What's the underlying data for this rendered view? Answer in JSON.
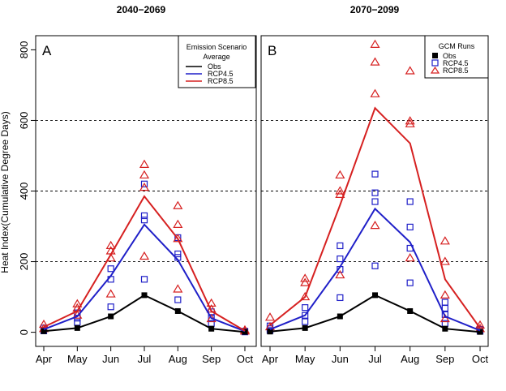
{
  "figure": {
    "ylabel": "Heat Index(Cumulative Degree Days)"
  },
  "colors": {
    "obs": "#000000",
    "rcp45": "#1f1fc8",
    "rcp85": "#d62020"
  },
  "chart_data": [
    {
      "type": "line",
      "panel_label": "A",
      "title": "2040−2069",
      "xlabel": "",
      "ylabel": "Heat Index(Cumulative Degree Days)",
      "categories": [
        "Apr",
        "May",
        "Jun",
        "Jul",
        "Aug",
        "Sep",
        "Oct"
      ],
      "y_ticks": [
        "0",
        "200",
        "400",
        "600",
        "800"
      ],
      "ylim": [
        -40,
        840
      ],
      "grid": "dashed horizontal lines at 200, 400, 600",
      "legend": {
        "position": "top-right",
        "title_lines": [
          "Emission Scenario",
          "Average"
        ],
        "entries": [
          {
            "name": "Obs",
            "style": "line",
            "color": "#000000"
          },
          {
            "name": "RCP4.5",
            "style": "line",
            "color": "#1f1fc8"
          },
          {
            "name": "RCP8.5",
            "style": "line",
            "color": "#d62020"
          }
        ]
      },
      "series": [
        {
          "name": "Obs",
          "kind": "line-square",
          "color": "#000000",
          "values": [
            3,
            12,
            45,
            105,
            60,
            10,
            1
          ]
        },
        {
          "name": "RCP4.5",
          "kind": "line",
          "color": "#1f1fc8",
          "values": [
            8,
            45,
            160,
            305,
            205,
            40,
            3
          ]
        },
        {
          "name": "RCP8.5",
          "kind": "line",
          "color": "#d62020",
          "values": [
            15,
            60,
            220,
            385,
            265,
            60,
            4
          ]
        }
      ],
      "runs": [
        {
          "name": "RCP4.5",
          "marker": "open-square",
          "color": "#1f1fc8",
          "points": [
            [
              0,
              4
            ],
            [
              0,
              12
            ],
            [
              1,
              28
            ],
            [
              1,
              40
            ],
            [
              1,
              55
            ],
            [
              2,
              72
            ],
            [
              2,
              150
            ],
            [
              2,
              180
            ],
            [
              3,
              150
            ],
            [
              3,
              318
            ],
            [
              3,
              330
            ],
            [
              3,
              420
            ],
            [
              4,
              92
            ],
            [
              4,
              212
            ],
            [
              4,
              222
            ],
            [
              4,
              268
            ],
            [
              5,
              25
            ],
            [
              5,
              40
            ],
            [
              5,
              58
            ],
            [
              6,
              1
            ],
            [
              6,
              3
            ]
          ]
        },
        {
          "name": "RCP8.5",
          "marker": "open-triangle",
          "color": "#d62020",
          "points": [
            [
              0,
              10
            ],
            [
              0,
              22
            ],
            [
              1,
              48
            ],
            [
              1,
              68
            ],
            [
              1,
              80
            ],
            [
              2,
              108
            ],
            [
              2,
              210
            ],
            [
              2,
              230
            ],
            [
              2,
              245
            ],
            [
              3,
              215
            ],
            [
              3,
              410
            ],
            [
              3,
              445
            ],
            [
              3,
              475
            ],
            [
              4,
              122
            ],
            [
              4,
              265
            ],
            [
              4,
              305
            ],
            [
              4,
              358
            ],
            [
              5,
              38
            ],
            [
              5,
              65
            ],
            [
              5,
              82
            ],
            [
              6,
              3
            ],
            [
              6,
              6
            ]
          ]
        }
      ]
    },
    {
      "type": "line",
      "panel_label": "B",
      "title": "2070−2099",
      "xlabel": "",
      "ylabel": "",
      "categories": [
        "Apr",
        "May",
        "Jun",
        "Jul",
        "Aug",
        "Sep",
        "Oct"
      ],
      "y_ticks": [],
      "ylim": [
        -40,
        840
      ],
      "grid": "dashed horizontal lines at 200, 400, 600",
      "legend": {
        "position": "top-right",
        "title_lines": [
          "GCM Runs"
        ],
        "entries": [
          {
            "name": "Obs",
            "style": "filled-square",
            "color": "#000000"
          },
          {
            "name": "RCP4.5",
            "style": "open-square",
            "color": "#1f1fc8"
          },
          {
            "name": "RCP8.5",
            "style": "open-triangle",
            "color": "#d62020"
          }
        ]
      },
      "series": [
        {
          "name": "Obs",
          "kind": "line-square",
          "color": "#000000",
          "values": [
            2,
            12,
            45,
            105,
            60,
            10,
            1
          ]
        },
        {
          "name": "RCP4.5",
          "kind": "line",
          "color": "#1f1fc8",
          "values": [
            8,
            48,
            185,
            350,
            255,
            45,
            5
          ]
        },
        {
          "name": "RCP8.5",
          "kind": "line",
          "color": "#d62020",
          "values": [
            20,
            100,
            360,
            635,
            535,
            150,
            12
          ]
        }
      ],
      "runs": [
        {
          "name": "RCP4.5",
          "marker": "open-square",
          "color": "#1f1fc8",
          "points": [
            [
              0,
              5
            ],
            [
              0,
              10
            ],
            [
              0,
              18
            ],
            [
              1,
              30
            ],
            [
              1,
              48
            ],
            [
              1,
              70
            ],
            [
              2,
              98
            ],
            [
              2,
              178
            ],
            [
              2,
              208
            ],
            [
              2,
              245
            ],
            [
              3,
              188
            ],
            [
              3,
              370
            ],
            [
              3,
              395
            ],
            [
              3,
              448
            ],
            [
              4,
              140
            ],
            [
              4,
              238
            ],
            [
              4,
              298
            ],
            [
              4,
              370
            ],
            [
              5,
              25
            ],
            [
              5,
              50
            ],
            [
              5,
              68
            ],
            [
              5,
              85
            ],
            [
              6,
              3
            ],
            [
              6,
              8
            ]
          ]
        },
        {
          "name": "RCP8.5",
          "marker": "open-triangle",
          "color": "#d62020",
          "points": [
            [
              0,
              15
            ],
            [
              0,
              42
            ],
            [
              1,
              100
            ],
            [
              1,
              140
            ],
            [
              1,
              152
            ],
            [
              2,
              162
            ],
            [
              2,
              390
            ],
            [
              2,
              400
            ],
            [
              2,
              445
            ],
            [
              3,
              302
            ],
            [
              3,
              675
            ],
            [
              3,
              765
            ],
            [
              3,
              815
            ],
            [
              4,
              210
            ],
            [
              4,
              590
            ],
            [
              4,
              598
            ],
            [
              4,
              740
            ],
            [
              5,
              38
            ],
            [
              5,
              105
            ],
            [
              5,
              200
            ],
            [
              5,
              258
            ],
            [
              6,
              10
            ],
            [
              6,
              20
            ]
          ]
        }
      ]
    }
  ]
}
